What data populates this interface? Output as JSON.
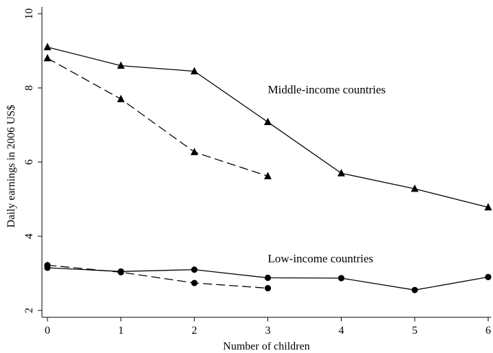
{
  "chart_data": {
    "type": "line",
    "title": "",
    "xlabel": "Number of children",
    "ylabel": "Daily earnings in 2006 US$",
    "xlim": [
      0,
      6
    ],
    "ylim": [
      2,
      10
    ],
    "x_ticks": [
      0,
      1,
      2,
      3,
      4,
      5,
      6
    ],
    "y_ticks": [
      2,
      4,
      6,
      8,
      10
    ],
    "grid": false,
    "legend": "none",
    "annotations": [
      {
        "text": "Middle-income countries",
        "x": 3.0,
        "y": 7.85
      },
      {
        "text": "Low-income countries",
        "x": 3.0,
        "y": 3.3
      }
    ],
    "series": [
      {
        "group": "middle-income",
        "line": "solid",
        "marker": "triangle",
        "x": [
          0,
          1,
          2,
          3,
          4,
          5,
          6
        ],
        "y": [
          9.1,
          8.6,
          8.45,
          7.08,
          5.7,
          5.28,
          4.78
        ]
      },
      {
        "group": "middle-income",
        "line": "dashed",
        "marker": "triangle",
        "x": [
          0,
          1,
          2,
          3
        ],
        "y": [
          8.8,
          7.7,
          6.27,
          5.62
        ]
      },
      {
        "group": "low-income",
        "line": "solid",
        "marker": "circle",
        "x": [
          0,
          1,
          2,
          3,
          4,
          5,
          6
        ],
        "y": [
          3.15,
          3.05,
          3.1,
          2.88,
          2.87,
          2.55,
          2.9
        ]
      },
      {
        "group": "low-income",
        "line": "dashed",
        "marker": "circle",
        "x": [
          0,
          1,
          2,
          3
        ],
        "y": [
          3.22,
          3.03,
          2.74,
          2.6
        ]
      }
    ],
    "colors": {
      "line": "#000000",
      "marker": "#000000",
      "axis": "#000000"
    }
  }
}
